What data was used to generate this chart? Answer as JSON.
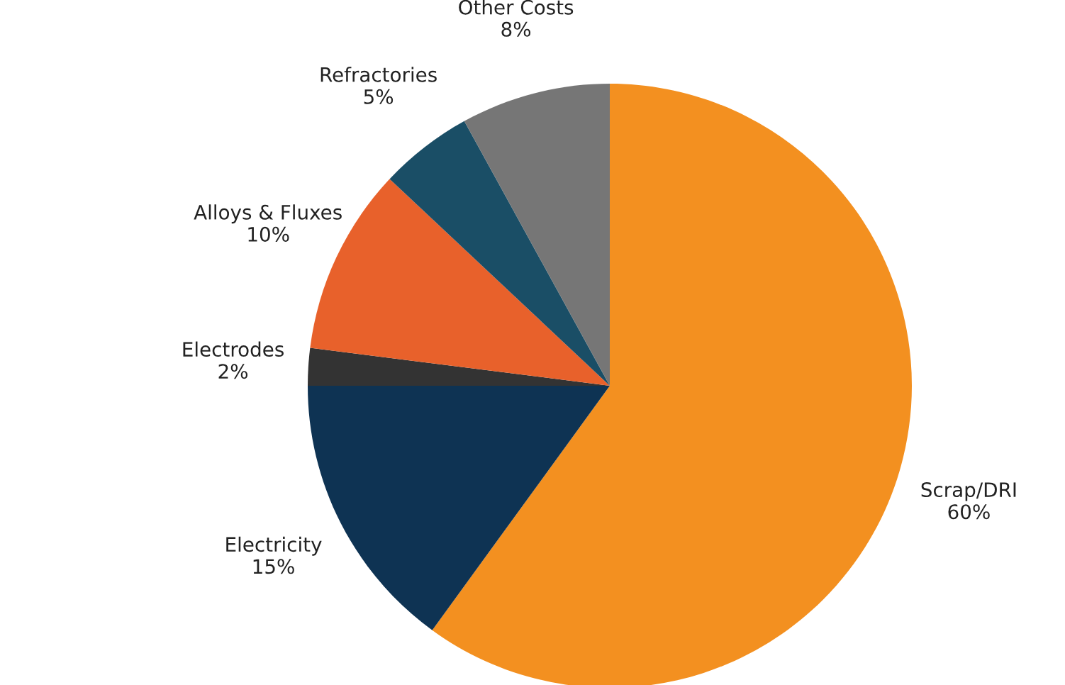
{
  "chart_data": {
    "type": "pie",
    "categories": [
      "Scrap/DRI",
      "Electricity",
      "Electrodes",
      "Alloys & Fluxes",
      "Refractories",
      "Other Costs"
    ],
    "values": [
      60,
      15,
      2,
      10,
      5,
      8
    ],
    "colors": [
      "#f39020",
      "#0e3353",
      "#333333",
      "#e8612b",
      "#1a4e66",
      "#767676"
    ],
    "value_labels": [
      "60%",
      "15%",
      "2%",
      "10%",
      "5%",
      "8%"
    ],
    "legend": false
  }
}
